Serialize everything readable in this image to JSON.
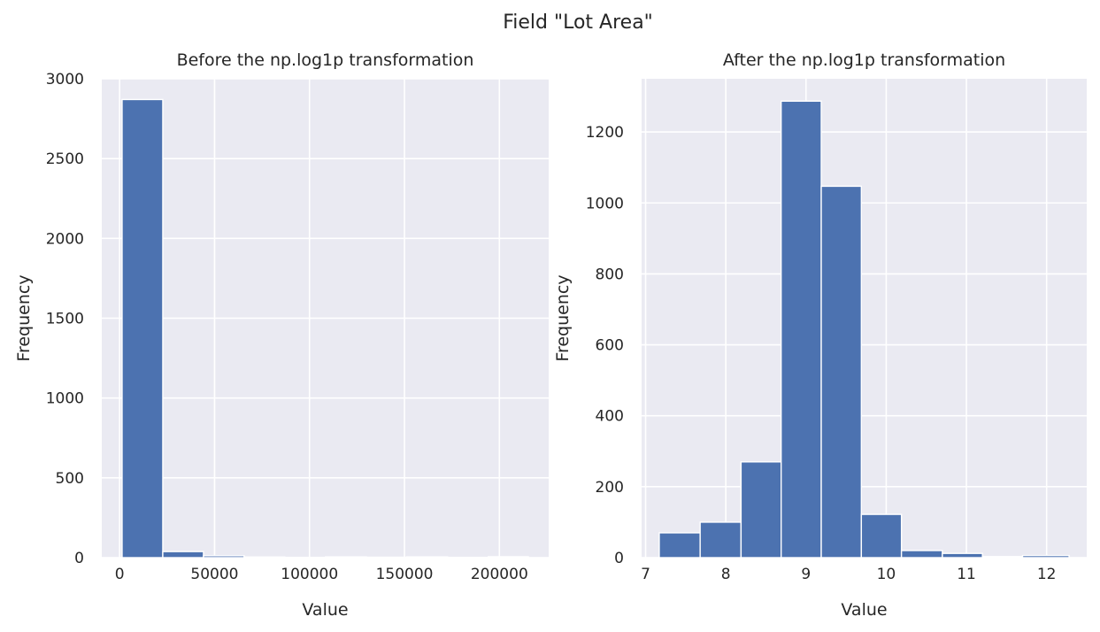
{
  "title": "Field \"Lot Area\"",
  "chart_data": [
    {
      "type": "bar",
      "title": "Before the np.log1p transformation",
      "xlabel": "Value",
      "ylabel": "Frequency",
      "bin_edges": [
        1300,
        22729.5,
        44159,
        65588.5,
        87018,
        108447.5,
        129877,
        151306.5,
        172736,
        194165.5,
        215245
      ],
      "values": [
        2870,
        38,
        12,
        4,
        2,
        5,
        3,
        5,
        2,
        6
      ],
      "xlim": [
        -9400,
        225950
      ],
      "ylim": [
        0,
        3000
      ],
      "xticks": [
        0,
        50000,
        100000,
        150000,
        200000
      ],
      "xtick_labels": [
        "0",
        "50000",
        "100000",
        "150000",
        "200000"
      ],
      "yticks": [
        0,
        500,
        1000,
        1500,
        2000,
        2500,
        3000
      ],
      "ytick_labels": [
        "0",
        "500",
        "1000",
        "1500",
        "2000",
        "2500",
        "3000"
      ],
      "grid": true
    },
    {
      "type": "bar",
      "title": "After the np.log1p transformation",
      "xlabel": "Value",
      "ylabel": "Frequency",
      "bin_edges": [
        7.17,
        7.68,
        8.19,
        8.69,
        9.19,
        9.69,
        10.19,
        10.7,
        11.2,
        11.7,
        12.28
      ],
      "values": [
        70,
        100,
        270,
        1287,
        1047,
        122,
        20,
        12,
        3,
        6
      ],
      "xlim": [
        6.95,
        12.5
      ],
      "ylim": [
        0,
        1350
      ],
      "xticks": [
        7,
        8,
        9,
        10,
        11,
        12
      ],
      "xtick_labels": [
        "7",
        "8",
        "9",
        "10",
        "11",
        "12"
      ],
      "yticks": [
        0,
        200,
        400,
        600,
        800,
        1000,
        1200
      ],
      "ytick_labels": [
        "0",
        "200",
        "400",
        "600",
        "800",
        "1000",
        "1200"
      ],
      "grid": true
    }
  ]
}
